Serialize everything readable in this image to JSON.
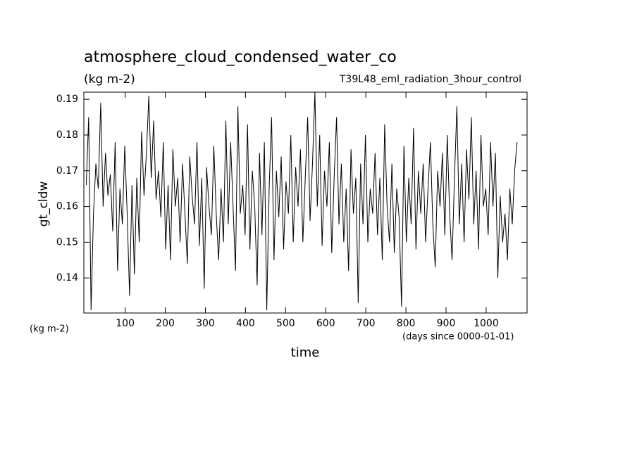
{
  "chart_data": {
    "type": "line",
    "title": "atmosphere_cloud_condensed_water_co",
    "subtitle": "(kg m-2)",
    "annotation": "T39L48_eml_radiation_3hour_control",
    "ylabel": "gt_cldw",
    "xlabel": "time",
    "yunits": "(kg m-2)",
    "xunits": "(days since 0000-01-01)",
    "xlim": [
      -3,
      1102
    ],
    "ylim": [
      0.1302,
      0.192
    ],
    "xticks": [
      100,
      200,
      300,
      400,
      500,
      600,
      700,
      800,
      900,
      1000
    ],
    "yticks": [
      0.14,
      0.15,
      0.16,
      0.17,
      0.18,
      0.19
    ],
    "color": "#000000",
    "x": [
      3,
      9,
      15,
      21,
      27,
      33,
      39,
      45,
      51,
      57,
      63,
      69,
      75,
      81,
      87,
      93,
      99,
      105,
      111,
      117,
      123,
      129,
      135,
      141,
      147,
      153,
      159,
      165,
      171,
      177,
      183,
      189,
      195,
      201,
      207,
      213,
      219,
      225,
      231,
      237,
      243,
      249,
      255,
      261,
      267,
      273,
      279,
      285,
      291,
      297,
      303,
      309,
      315,
      321,
      327,
      333,
      339,
      345,
      351,
      357,
      363,
      369,
      375,
      381,
      387,
      393,
      399,
      405,
      411,
      417,
      423,
      429,
      435,
      441,
      447,
      453,
      459,
      465,
      471,
      477,
      483,
      489,
      495,
      501,
      507,
      513,
      519,
      525,
      531,
      537,
      543,
      549,
      555,
      561,
      567,
      573,
      579,
      585,
      591,
      597,
      603,
      609,
      615,
      621,
      627,
      633,
      639,
      645,
      651,
      657,
      663,
      669,
      675,
      681,
      687,
      693,
      699,
      705,
      711,
      717,
      723,
      729,
      735,
      741,
      747,
      753,
      759,
      765,
      771,
      777,
      783,
      789,
      795,
      801,
      807,
      813,
      819,
      825,
      831,
      837,
      843,
      849,
      855,
      861,
      867,
      873,
      879,
      885,
      891,
      897,
      903,
      909,
      915,
      921,
      927,
      933,
      939,
      945,
      951,
      957,
      963,
      969,
      975,
      981,
      987,
      993,
      999,
      1005,
      1011,
      1017,
      1023,
      1029,
      1035,
      1041,
      1047,
      1053,
      1059,
      1065,
      1071,
      1077
    ],
    "values": [
      0.166,
      0.185,
      0.131,
      0.158,
      0.172,
      0.165,
      0.189,
      0.16,
      0.175,
      0.163,
      0.169,
      0.153,
      0.178,
      0.142,
      0.165,
      0.155,
      0.177,
      0.158,
      0.135,
      0.166,
      0.141,
      0.168,
      0.15,
      0.181,
      0.163,
      0.175,
      0.191,
      0.168,
      0.184,
      0.162,
      0.17,
      0.157,
      0.178,
      0.148,
      0.166,
      0.145,
      0.176,
      0.16,
      0.168,
      0.15,
      0.172,
      0.158,
      0.144,
      0.174,
      0.163,
      0.155,
      0.178,
      0.149,
      0.168,
      0.137,
      0.171,
      0.16,
      0.152,
      0.177,
      0.158,
      0.145,
      0.165,
      0.15,
      0.184,
      0.155,
      0.178,
      0.16,
      0.142,
      0.188,
      0.158,
      0.166,
      0.152,
      0.183,
      0.148,
      0.17,
      0.16,
      0.138,
      0.175,
      0.152,
      0.178,
      0.131,
      0.165,
      0.185,
      0.145,
      0.17,
      0.157,
      0.174,
      0.148,
      0.167,
      0.158,
      0.18,
      0.15,
      0.171,
      0.16,
      0.176,
      0.15,
      0.168,
      0.185,
      0.156,
      0.172,
      0.192,
      0.16,
      0.18,
      0.149,
      0.17,
      0.16,
      0.178,
      0.147,
      0.168,
      0.185,
      0.155,
      0.172,
      0.15,
      0.165,
      0.142,
      0.176,
      0.158,
      0.168,
      0.133,
      0.172,
      0.155,
      0.18,
      0.15,
      0.165,
      0.158,
      0.175,
      0.152,
      0.168,
      0.145,
      0.183,
      0.16,
      0.15,
      0.172,
      0.147,
      0.165,
      0.157,
      0.132,
      0.177,
      0.15,
      0.168,
      0.155,
      0.182,
      0.148,
      0.17,
      0.158,
      0.172,
      0.15,
      0.165,
      0.178,
      0.155,
      0.143,
      0.17,
      0.16,
      0.175,
      0.152,
      0.18,
      0.158,
      0.145,
      0.168,
      0.188,
      0.155,
      0.172,
      0.15,
      0.176,
      0.162,
      0.185,
      0.155,
      0.17,
      0.148,
      0.18,
      0.16,
      0.165,
      0.152,
      0.178,
      0.16,
      0.175,
      0.14,
      0.163,
      0.15,
      0.158,
      0.145,
      0.165,
      0.155,
      0.17,
      0.178
    ]
  }
}
